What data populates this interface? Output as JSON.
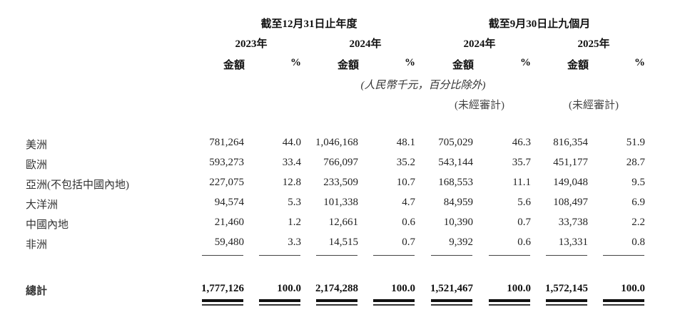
{
  "header": {
    "groups": [
      "截至12月31日止年度",
      "截至9月30日止九個月"
    ],
    "years": [
      "2023年",
      "2024年",
      "2024年",
      "2025年"
    ],
    "amount_label": "金額",
    "percent_label": "%",
    "unit_note": "(人民幣千元，百分比除外)",
    "unaudited": [
      "(未經審計)",
      "(未經審計)"
    ]
  },
  "rows": [
    {
      "label": "美洲",
      "values": [
        "781,264",
        "44.0",
        "1,046,168",
        "48.1",
        "705,029",
        "46.3",
        "816,354",
        "51.9"
      ]
    },
    {
      "label": "歐洲",
      "values": [
        "593,273",
        "33.4",
        "766,097",
        "35.2",
        "543,144",
        "35.7",
        "451,177",
        "28.7"
      ]
    },
    {
      "label": "亞洲(不包括中國內地)",
      "values": [
        "227,075",
        "12.8",
        "233,509",
        "10.7",
        "168,553",
        "11.1",
        "149,048",
        "9.5"
      ]
    },
    {
      "label": "大洋洲",
      "values": [
        "94,574",
        "5.3",
        "101,338",
        "4.7",
        "84,959",
        "5.6",
        "108,497",
        "6.9"
      ]
    },
    {
      "label": "中國內地",
      "values": [
        "21,460",
        "1.2",
        "12,661",
        "0.6",
        "10,390",
        "0.7",
        "33,738",
        "2.2"
      ]
    },
    {
      "label": "非洲",
      "values": [
        "59,480",
        "3.3",
        "14,515",
        "0.7",
        "9,392",
        "0.6",
        "13,331",
        "0.8"
      ]
    }
  ],
  "total": {
    "label": "總計",
    "values": [
      "1,777,126",
      "100.0",
      "2,174,288",
      "100.0",
      "1,521,467",
      "100.0",
      "1,572,145",
      "100.0"
    ]
  }
}
